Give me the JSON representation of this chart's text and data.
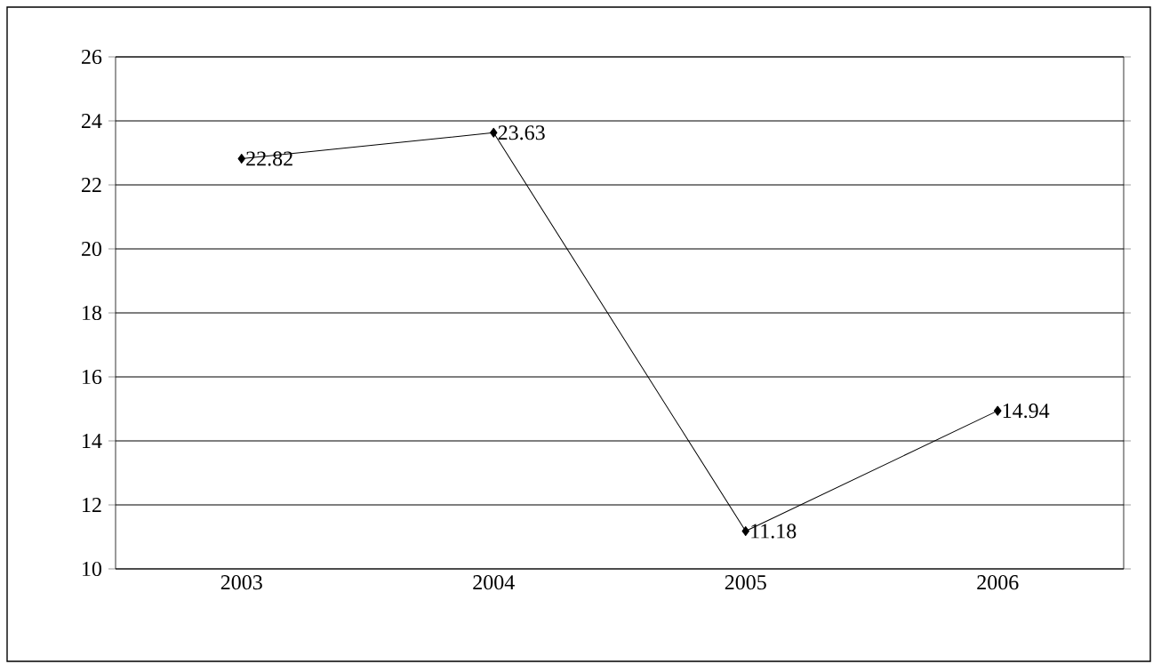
{
  "chart_data": {
    "type": "line",
    "categories": [
      "2003",
      "2004",
      "2005",
      "2006"
    ],
    "series": [
      {
        "color": "#000000",
        "values": [
          22.82,
          23.63,
          11.18,
          14.94
        ]
      }
    ],
    "ylim": [
      10,
      26
    ],
    "yticks": [
      10,
      12,
      14,
      16,
      18,
      20,
      22,
      24,
      26
    ],
    "grid": "y",
    "marker": "diamond",
    "line_style": "solid",
    "data_labels": true
  }
}
